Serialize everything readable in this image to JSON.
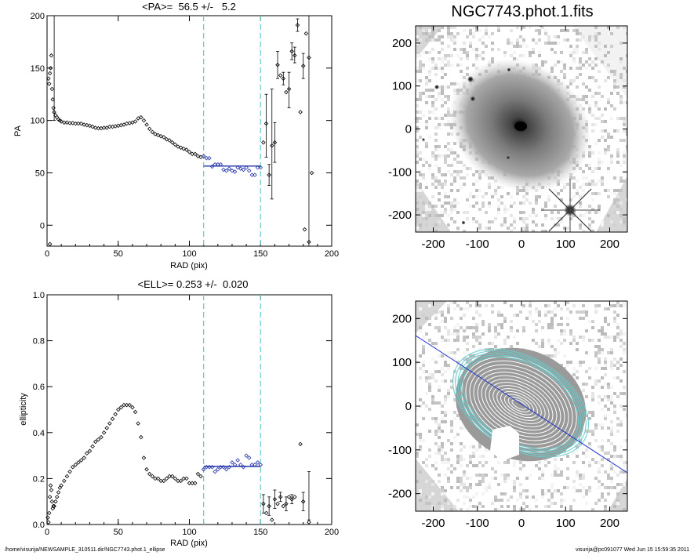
{
  "chart_data": [
    {
      "type": "scatter",
      "title_parts": [
        "<PA>=",
        "56.5",
        "+/-",
        "5.2"
      ],
      "xlabel": "RAD (pix)",
      "ylabel": "PA",
      "xlim": [
        0,
        200
      ],
      "ylim": [
        -20,
        200
      ],
      "x_ticks": [
        "0",
        "50",
        "100",
        "150",
        "200"
      ],
      "y_ticks": [
        "0",
        "50",
        "100",
        "150",
        "200"
      ],
      "mean_value": 56.5,
      "mean_error": 5.2,
      "fit_range": [
        110,
        150
      ],
      "colors": {
        "points": "#000000",
        "fit": "#2233aa",
        "bounds": "#66cccc"
      },
      "points": [
        [
          1,
          140
        ],
        [
          1.5,
          135
        ],
        [
          2,
          145
        ],
        [
          2.5,
          150
        ],
        [
          3,
          162
        ],
        [
          3.5,
          130
        ],
        [
          4,
          120
        ],
        [
          4.5,
          112
        ],
        [
          5,
          108
        ],
        [
          6,
          105
        ],
        [
          7,
          103
        ],
        [
          8,
          101
        ],
        [
          9,
          100
        ],
        [
          10,
          99
        ],
        [
          12,
          98
        ],
        [
          14,
          98
        ],
        [
          16,
          97.5
        ],
        [
          18,
          97.5
        ],
        [
          20,
          97
        ],
        [
          22,
          97
        ],
        [
          24,
          97
        ],
        [
          26,
          96
        ],
        [
          28,
          95.5
        ],
        [
          30,
          95
        ],
        [
          32,
          94
        ],
        [
          34,
          93
        ],
        [
          36,
          92.5
        ],
        [
          38,
          92.5
        ],
        [
          40,
          93
        ],
        [
          42,
          93
        ],
        [
          44,
          94
        ],
        [
          46,
          94
        ],
        [
          48,
          94.5
        ],
        [
          50,
          95
        ],
        [
          52,
          95.5
        ],
        [
          54,
          96
        ],
        [
          56,
          97
        ],
        [
          58,
          97.5
        ],
        [
          60,
          98
        ],
        [
          62,
          99
        ],
        [
          64,
          102
        ],
        [
          66,
          103
        ],
        [
          68,
          100
        ],
        [
          70,
          96
        ],
        [
          72,
          92
        ],
        [
          74,
          89
        ],
        [
          76,
          87
        ],
        [
          78,
          86
        ],
        [
          80,
          85
        ],
        [
          82,
          84
        ],
        [
          84,
          82
        ],
        [
          86,
          81
        ],
        [
          88,
          79
        ],
        [
          90,
          77
        ],
        [
          92,
          75
        ],
        [
          94,
          74
        ],
        [
          96,
          73
        ],
        [
          98,
          72
        ],
        [
          100,
          70
        ],
        [
          102,
          68
        ],
        [
          104,
          68
        ],
        [
          106,
          66
        ],
        [
          108,
          65
        ],
        [
          110,
          66
        ],
        [
          112,
          64
        ],
        [
          114,
          64
        ],
        [
          116,
          56
        ],
        [
          118,
          58
        ],
        [
          120,
          58
        ],
        [
          122,
          58
        ],
        [
          124,
          53
        ],
        [
          126,
          52
        ],
        [
          128,
          54
        ],
        [
          130,
          52
        ],
        [
          132,
          51
        ],
        [
          134,
          55
        ],
        [
          136,
          54
        ],
        [
          138,
          53
        ],
        [
          140,
          55
        ],
        [
          142,
          52
        ],
        [
          144,
          48
        ],
        [
          146,
          48
        ],
        [
          148,
          55
        ],
        [
          150,
          55
        ],
        [
          152,
          79
        ],
        [
          154,
          97
        ],
        [
          156,
          48
        ],
        [
          158,
          76
        ],
        [
          160,
          79
        ],
        [
          162,
          153
        ],
        [
          164,
          143
        ],
        [
          166,
          140
        ],
        [
          168,
          127
        ],
        [
          170,
          130
        ],
        [
          172,
          166
        ],
        [
          174,
          162
        ],
        [
          176,
          191
        ],
        [
          178,
          108
        ],
        [
          180,
          152
        ],
        [
          182,
          183
        ],
        [
          184,
          160
        ],
        [
          186,
          50
        ],
        [
          184,
          -16
        ],
        [
          2,
          -18
        ],
        [
          181,
          -4
        ]
      ],
      "error_bars": [
        [
          154,
          65,
          125
        ],
        [
          156,
          38,
          58
        ],
        [
          158,
          25,
          130
        ],
        [
          160,
          60,
          98
        ],
        [
          162,
          140,
          166
        ],
        [
          166,
          134,
          146
        ],
        [
          170,
          112,
          146
        ],
        [
          172,
          158,
          174
        ],
        [
          174,
          155,
          170
        ],
        [
          180,
          140,
          164
        ],
        [
          176,
          185,
          197
        ],
        [
          184,
          -20,
          200
        ],
        [
          5,
          100,
          200
        ]
      ]
    },
    {
      "type": "scatter",
      "title_parts": [
        "<ELL>=",
        "0.253",
        "+/-",
        "0.020"
      ],
      "xlabel": "RAD (pix)",
      "ylabel": "ellipticity",
      "xlim": [
        0,
        200
      ],
      "ylim": [
        0,
        1
      ],
      "x_ticks": [
        "0",
        "50",
        "100",
        "150",
        "200"
      ],
      "y_ticks": [
        "0.0",
        "0.2",
        "0.4",
        "0.6",
        "0.8",
        "1.0"
      ],
      "mean_value": 0.253,
      "mean_error": 0.02,
      "fit_range": [
        110,
        150
      ],
      "colors": {
        "points": "#000000",
        "fit": "#2233aa",
        "bounds": "#66cccc"
      },
      "points": [
        [
          0.5,
          0.03
        ],
        [
          1,
          0.01
        ],
        [
          1.5,
          0.05
        ],
        [
          2,
          0.12
        ],
        [
          2.5,
          0.17
        ],
        [
          3,
          0.15
        ],
        [
          3.5,
          0.1
        ],
        [
          4,
          0.07
        ],
        [
          4.5,
          0.08
        ],
        [
          5,
          0.08
        ],
        [
          6,
          0.1
        ],
        [
          7,
          0.12
        ],
        [
          8,
          0.14
        ],
        [
          9,
          0.16
        ],
        [
          10,
          0.17
        ],
        [
          12,
          0.19
        ],
        [
          14,
          0.21
        ],
        [
          16,
          0.23
        ],
        [
          18,
          0.25
        ],
        [
          20,
          0.26
        ],
        [
          22,
          0.27
        ],
        [
          24,
          0.28
        ],
        [
          26,
          0.29
        ],
        [
          28,
          0.31
        ],
        [
          30,
          0.32
        ],
        [
          32,
          0.34
        ],
        [
          34,
          0.36
        ],
        [
          36,
          0.37
        ],
        [
          38,
          0.38
        ],
        [
          40,
          0.4
        ],
        [
          42,
          0.42
        ],
        [
          44,
          0.44
        ],
        [
          46,
          0.46
        ],
        [
          48,
          0.48
        ],
        [
          50,
          0.5
        ],
        [
          52,
          0.51
        ],
        [
          54,
          0.52
        ],
        [
          56,
          0.52
        ],
        [
          58,
          0.52
        ],
        [
          60,
          0.51
        ],
        [
          62,
          0.49
        ],
        [
          64,
          0.44
        ],
        [
          66,
          0.38
        ],
        [
          68,
          0.29
        ],
        [
          70,
          0.24
        ],
        [
          72,
          0.22
        ],
        [
          74,
          0.21
        ],
        [
          76,
          0.2
        ],
        [
          78,
          0.2
        ],
        [
          80,
          0.19
        ],
        [
          82,
          0.19
        ],
        [
          84,
          0.2
        ],
        [
          86,
          0.21
        ],
        [
          88,
          0.21
        ],
        [
          90,
          0.2
        ],
        [
          92,
          0.19
        ],
        [
          94,
          0.19
        ],
        [
          96,
          0.2
        ],
        [
          98,
          0.2
        ],
        [
          100,
          0.18
        ],
        [
          102,
          0.18
        ],
        [
          104,
          0.18
        ],
        [
          106,
          0.22
        ],
        [
          108,
          0.21
        ],
        [
          110,
          0.24
        ],
        [
          112,
          0.25
        ],
        [
          114,
          0.25
        ],
        [
          116,
          0.25
        ],
        [
          118,
          0.23
        ],
        [
          120,
          0.24
        ],
        [
          122,
          0.25
        ],
        [
          124,
          0.25
        ],
        [
          126,
          0.24
        ],
        [
          128,
          0.25
        ],
        [
          130,
          0.27
        ],
        [
          132,
          0.26
        ],
        [
          134,
          0.28
        ],
        [
          136,
          0.26
        ],
        [
          138,
          0.25
        ],
        [
          140,
          0.3
        ],
        [
          142,
          0.29
        ],
        [
          144,
          0.26
        ],
        [
          146,
          0.26
        ],
        [
          148,
          0.27
        ],
        [
          150,
          0.26
        ],
        [
          152,
          0.09
        ],
        [
          154,
          0.05
        ],
        [
          156,
          0.08
        ],
        [
          158,
          0.02
        ],
        [
          160,
          0.11
        ],
        [
          162,
          0.09
        ],
        [
          164,
          0.12
        ],
        [
          166,
          0.08
        ],
        [
          168,
          0.09
        ],
        [
          170,
          0.12
        ],
        [
          172,
          0.11
        ],
        [
          174,
          0.12
        ],
        [
          178,
          0.35
        ],
        [
          180,
          0.1
        ],
        [
          184,
          0.01
        ]
      ],
      "error_bars": [
        [
          152,
          0.05,
          0.13
        ],
        [
          156,
          0.04,
          0.12
        ],
        [
          160,
          0.07,
          0.15
        ],
        [
          164,
          0.1,
          0.14
        ],
        [
          168,
          0.06,
          0.12
        ],
        [
          172,
          0.09,
          0.13
        ],
        [
          180,
          0.06,
          0.14
        ],
        [
          184,
          0.02,
          0.23
        ]
      ]
    }
  ],
  "images": [
    {
      "title": "NGC7743.phot.1.fits",
      "x_ticks": [
        "-200",
        "-100",
        "0",
        "100",
        "200"
      ],
      "y_ticks": [
        "200",
        "100",
        "0",
        "-100",
        "-200"
      ],
      "lim": [
        -240,
        240
      ],
      "colors": {
        "background": "#ffffff",
        "galaxy": "#777777",
        "core": "#111111",
        "corner": "#d8d8d8"
      }
    },
    {
      "title": "",
      "x_ticks": [
        "-200",
        "-100",
        "0",
        "100",
        "200"
      ],
      "y_ticks": [
        "200",
        "100",
        "0",
        "-100",
        "-200"
      ],
      "lim": [
        -240,
        240
      ],
      "colors": {
        "contour": "#ffffff",
        "fit_contour": "#66cccc",
        "major_axis": "#2233cc"
      }
    }
  ],
  "footer": {
    "left": "/home/visurija/NEWSAMPLE_310511.dir/NGC7743.phot.1_ellipse",
    "right": "visurija@pc091077  Wed Jun 15 15:59:35 2011"
  }
}
